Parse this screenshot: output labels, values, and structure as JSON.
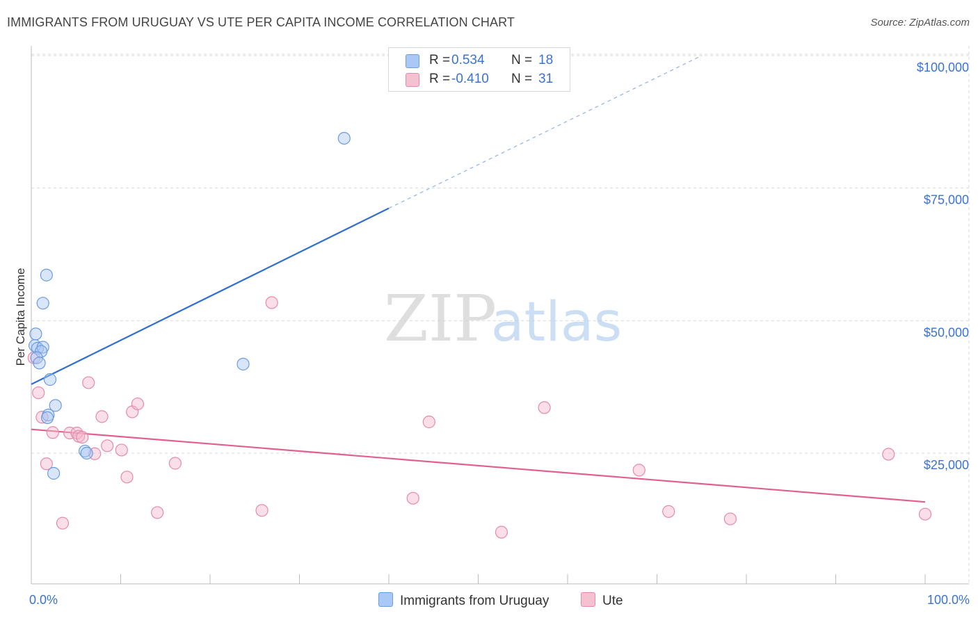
{
  "title": "IMMIGRANTS FROM URUGUAY VS UTE PER CAPITA INCOME CORRELATION CHART",
  "source": "Source: ZipAtlas.com",
  "watermark": {
    "zip": "ZIP",
    "atlas": "atlas"
  },
  "colors": {
    "blue_fill": "#aac8f5",
    "blue_stroke": "#6b9be0",
    "blue_line": "#2f6fd0",
    "pink_fill": "#f5b8cb",
    "pink_stroke": "#e68aa8",
    "pink_line": "#e0608f",
    "tick_label": "#3a73d1",
    "grid": "#d9d9d9"
  },
  "legend": {
    "rows": [
      {
        "r_label": "R =",
        "r_value": "0.534",
        "n_label": "N =",
        "n_value": "18",
        "color": "#aac8f5",
        "border": "#6b9be0"
      },
      {
        "r_label": "R =",
        "r_value": "-0.410",
        "n_label": "N =",
        "n_value": "31",
        "color": "#f5c0d0",
        "border": "#e68aa8"
      }
    ]
  },
  "bottom_legend": [
    {
      "label": "Immigrants from Uruguay",
      "color": "#aac8f5",
      "border": "#6b9be0"
    },
    {
      "label": "Ute",
      "color": "#f5c0d0",
      "border": "#e68aa8"
    }
  ],
  "chart_data": {
    "type": "scatter",
    "title": "IMMIGRANTS FROM URUGUAY VS UTE PER CAPITA INCOME CORRELATION CHART",
    "xlabel": "",
    "ylabel": "Per Capita Income",
    "xlim": [
      0,
      100
    ],
    "ylim": [
      0,
      105000
    ],
    "x_tick_labels": [
      "0.0%",
      "100.0%"
    ],
    "y_ticks": [
      25000,
      50000,
      75000,
      100000
    ],
    "y_tick_labels": [
      "$25,000",
      "$50,000",
      "$75,000",
      "$100,000"
    ],
    "grid": true,
    "series": [
      {
        "name": "Immigrants from Uruguay",
        "color": "blue",
        "points": [
          [
            0.5,
            47500
          ],
          [
            0.4,
            45300
          ],
          [
            0.7,
            44800
          ],
          [
            1.3,
            45000
          ],
          [
            1.1,
            44200
          ],
          [
            0.6,
            43000
          ],
          [
            0.9,
            42000
          ],
          [
            1.3,
            53300
          ],
          [
            1.7,
            58600
          ],
          [
            2.1,
            38900
          ],
          [
            2.7,
            34000
          ],
          [
            1.9,
            32200
          ],
          [
            1.8,
            31700
          ],
          [
            6.0,
            25400
          ],
          [
            6.2,
            25000
          ],
          [
            2.5,
            21200
          ],
          [
            23.7,
            41800
          ],
          [
            35.0,
            84400
          ]
        ],
        "trend": {
          "x0": 0,
          "y0": 38000,
          "x1_solid": 40,
          "y1_solid": 71200,
          "x1_dashed": 75,
          "y1_dashed": 100000
        }
      },
      {
        "name": "Ute",
        "color": "pink",
        "points": [
          [
            0.3,
            43000
          ],
          [
            0.8,
            36400
          ],
          [
            1.2,
            31800
          ],
          [
            1.7,
            23000
          ],
          [
            2.4,
            28900
          ],
          [
            3.5,
            11800
          ],
          [
            4.3,
            28800
          ],
          [
            5.1,
            28800
          ],
          [
            5.3,
            28200
          ],
          [
            5.7,
            28000
          ],
          [
            6.4,
            38300
          ],
          [
            7.1,
            24900
          ],
          [
            7.9,
            31900
          ],
          [
            8.5,
            26400
          ],
          [
            10.1,
            25600
          ],
          [
            10.7,
            20500
          ],
          [
            11.3,
            32800
          ],
          [
            11.9,
            34300
          ],
          [
            14.1,
            13800
          ],
          [
            16.1,
            23100
          ],
          [
            25.8,
            14200
          ],
          [
            26.9,
            53400
          ],
          [
            42.7,
            16500
          ],
          [
            44.5,
            30900
          ],
          [
            52.6,
            10100
          ],
          [
            57.4,
            33600
          ],
          [
            68.0,
            21800
          ],
          [
            71.3,
            14000
          ],
          [
            78.2,
            12600
          ],
          [
            95.9,
            24800
          ],
          [
            100.0,
            13500
          ]
        ],
        "trend": {
          "x0": 0,
          "y0": 29500,
          "x1": 100,
          "y1": 15800
        }
      }
    ]
  }
}
